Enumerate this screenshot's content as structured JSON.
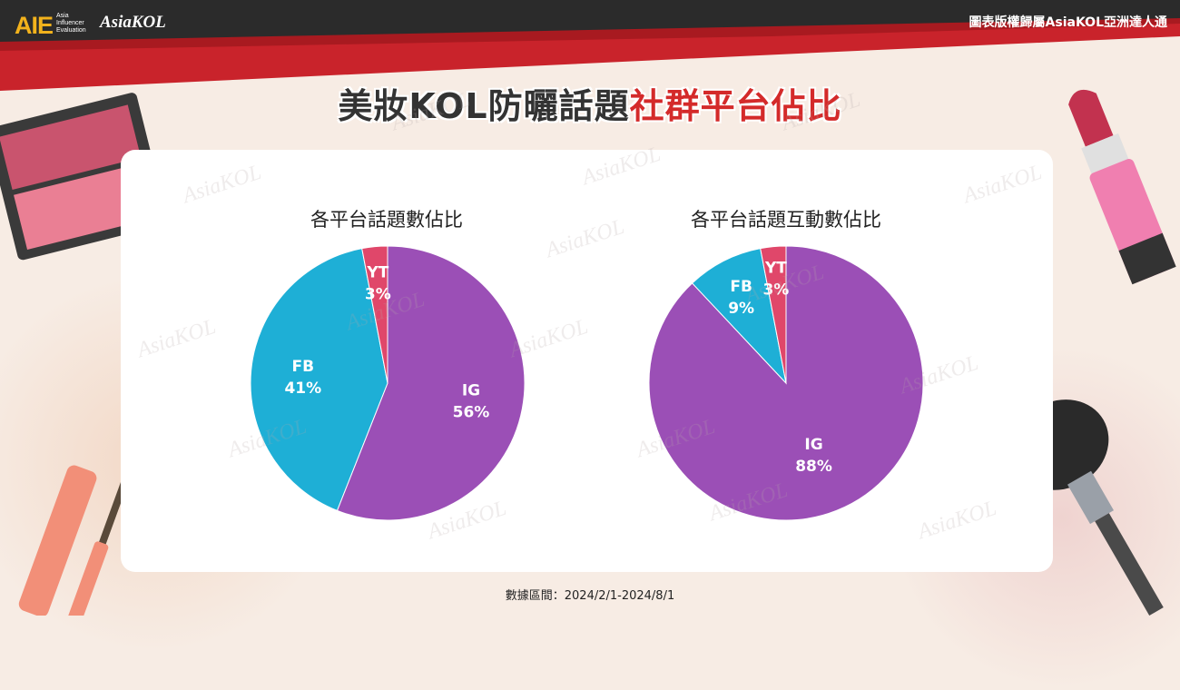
{
  "header": {
    "brand_aie": "AIE",
    "brand_aie_sub": "Asia\nInfluencer\nEvaluation",
    "brand_kol": "AsiaKOL",
    "copyright": "圖表版權歸屬AsiaKOL亞洲達人通"
  },
  "title": {
    "part1": "美妝KOL防曬話題",
    "part2": "社群平台佔比"
  },
  "watermark": "AsiaKOL",
  "colors": {
    "IG": "#9b4fb6",
    "FB": "#1eafd6",
    "YT": "#e0476a",
    "accent": "#d42a2a"
  },
  "chart_data": [
    {
      "type": "pie",
      "title": "各平台話題數佔比",
      "categories": [
        "IG",
        "FB",
        "YT"
      ],
      "values": [
        56,
        41,
        3
      ],
      "labels": [
        "56%",
        "41%",
        "3%"
      ]
    },
    {
      "type": "pie",
      "title": "各平台話題互動數佔比",
      "categories": [
        "IG",
        "FB",
        "YT"
      ],
      "values": [
        88,
        9,
        3
      ],
      "labels": [
        "88%",
        "9%",
        "3%"
      ]
    }
  ],
  "footer": "數據區間：2024/2/1-2024/8/1"
}
